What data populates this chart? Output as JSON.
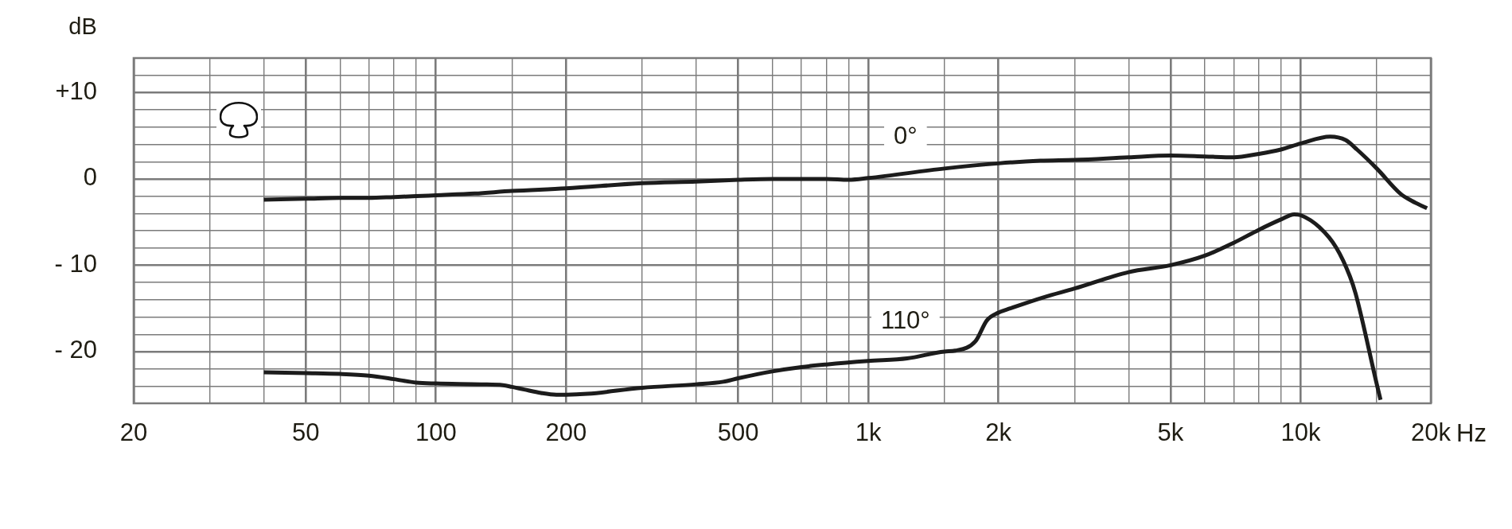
{
  "chart_data": {
    "type": "line",
    "xlabel": "Hz",
    "ylabel": "dB",
    "log": "x",
    "grid": true,
    "xlim": [
      20,
      20000
    ],
    "xticks": [
      20,
      {
        "value": 30,
        "label": null
      },
      {
        "value": 40,
        "label": null
      },
      50,
      {
        "value": 60,
        "label": null
      },
      {
        "value": 70,
        "label": null
      },
      {
        "value": 80,
        "label": null
      },
      {
        "value": 90,
        "label": null
      },
      100,
      {
        "value": 150,
        "label": null
      },
      200,
      {
        "value": 300,
        "label": null
      },
      {
        "value": 400,
        "label": null
      },
      500,
      {
        "value": 600,
        "label": null
      },
      {
        "value": 700,
        "label": null
      },
      {
        "value": 800,
        "label": null
      },
      {
        "value": 900,
        "label": null
      },
      {
        "value": 1000,
        "label": "1k"
      },
      {
        "value": 1500,
        "label": null
      },
      {
        "value": 2000,
        "label": "2k"
      },
      {
        "value": 3000,
        "label": null
      },
      {
        "value": 4000,
        "label": null
      },
      {
        "value": 5000,
        "label": "5k"
      },
      {
        "value": 6000,
        "label": null
      },
      {
        "value": 7000,
        "label": null
      },
      {
        "value": 8000,
        "label": null
      },
      {
        "value": 9000,
        "label": null
      },
      {
        "value": 10000,
        "label": "10k"
      },
      {
        "value": 15000,
        "label": null
      },
      {
        "value": 20000,
        "label": "20k"
      }
    ],
    "ylim": [
      -26,
      14
    ],
    "yticks": [
      {
        "value": -26,
        "label": null
      },
      {
        "value": -24,
        "label": null
      },
      {
        "value": -22,
        "label": null
      },
      {
        "value": -20,
        "label": "- 20"
      },
      {
        "value": -18,
        "label": null
      },
      {
        "value": -16,
        "label": null
      },
      {
        "value": -14,
        "label": null
      },
      {
        "value": -12,
        "label": null
      },
      {
        "value": -10,
        "label": "- 10"
      },
      {
        "value": -8,
        "label": null
      },
      {
        "value": -6,
        "label": null
      },
      {
        "value": -4,
        "label": null
      },
      {
        "value": -2,
        "label": null
      },
      0,
      {
        "value": 2,
        "label": null
      },
      {
        "value": 4,
        "label": null
      },
      {
        "value": 6,
        "label": null
      },
      {
        "value": 8,
        "label": null
      },
      {
        "value": 10,
        "label": "+10"
      },
      {
        "value": 12,
        "label": null
      },
      {
        "value": 14,
        "label": null
      }
    ],
    "series": [
      {
        "name": "0°",
        "color": "#1c1c1c",
        "x": [
          40,
          50,
          60,
          70,
          80,
          90,
          100,
          123,
          150,
          200,
          300,
          400,
          500,
          600,
          700,
          800,
          900,
          1000,
          1500,
          2000,
          2500,
          3000,
          4000,
          5000,
          6000,
          7000,
          8000,
          9000,
          10000,
          11700,
          12700,
          13500,
          15000,
          17000,
          18000,
          19600
        ],
        "values": [
          -2.4,
          -2.3,
          -2.2,
          -2.2,
          -2.1,
          -2.0,
          -1.9,
          -1.7,
          -1.4,
          -1.1,
          -0.5,
          -0.3,
          -0.1,
          0.0,
          0.0,
          0.0,
          -0.1,
          0.1,
          1.2,
          1.8,
          2.1,
          2.2,
          2.5,
          2.7,
          2.6,
          2.5,
          2.9,
          3.4,
          4.1,
          4.9,
          4.5,
          3.4,
          1.2,
          -1.7,
          -2.5,
          -3.4
        ]
      },
      {
        "name": "110°",
        "color": "#1c1c1c",
        "x": [
          40,
          50,
          60,
          70,
          80,
          90,
          100,
          127,
          143,
          150,
          160,
          175,
          190,
          200,
          224,
          300,
          400,
          462,
          500,
          600,
          700,
          800,
          1000,
          1230,
          1500,
          1590,
          1770,
          1880,
          2000,
          2130,
          2550,
          3000,
          4000,
          5000,
          6000,
          7000,
          8000,
          9000,
          9660,
          10000,
          11050,
          12100,
          13000,
          13400,
          15000,
          15300
        ],
        "values": [
          -22.4,
          -22.5,
          -22.6,
          -22.8,
          -23.2,
          -23.6,
          -23.7,
          -23.8,
          -23.9,
          -24.1,
          -24.4,
          -24.8,
          -25.0,
          -25.0,
          -24.9,
          -24.2,
          -23.8,
          -23.5,
          -23.1,
          -22.3,
          -21.8,
          -21.5,
          -21.1,
          -20.8,
          -20.0,
          -19.9,
          -18.8,
          -16.4,
          -15.5,
          -15.0,
          -13.7,
          -12.7,
          -10.8,
          -10.0,
          -8.9,
          -7.4,
          -5.9,
          -4.7,
          -4.1,
          -4.2,
          -5.6,
          -8.0,
          -11.3,
          -13.3,
          -23.8,
          -25.6
        ]
      }
    ]
  }
}
